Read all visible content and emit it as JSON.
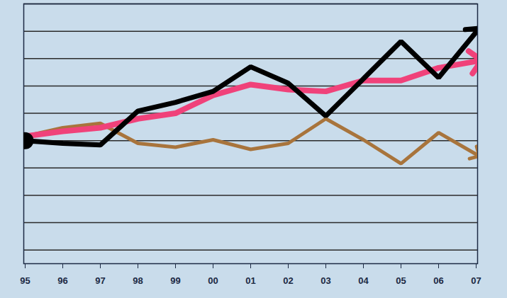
{
  "chart_data": {
    "type": "line",
    "categories": [
      "95",
      "96",
      "97",
      "98",
      "99",
      "00",
      "01",
      "02",
      "03",
      "04",
      "05",
      "06",
      "07"
    ],
    "series": [
      {
        "color": "#a8743c",
        "marker": "arrow",
        "values": [
          101.6,
          104.7,
          106.3,
          99,
          97.6,
          100.3,
          96.8,
          99,
          108,
          100.3,
          91.6,
          102.9,
          95
        ]
      },
      {
        "color": "#f0427a",
        "marker": "arrow",
        "values": [
          101.6,
          103.4,
          104.7,
          108,
          110,
          116.6,
          120.5,
          118.7,
          118,
          122,
          122,
          126.6,
          129
        ]
      },
      {
        "color": "#000000",
        "marker": "arrow",
        "values": [
          100,
          99,
          98.4,
          110.8,
          114,
          118,
          127,
          121,
          109,
          122.6,
          136.3,
          123,
          139.7
        ]
      }
    ],
    "ylim": [
      55,
      150
    ],
    "yticks": [
      60,
      70,
      80,
      90,
      100,
      110,
      120,
      130,
      140,
      150
    ],
    "grid": true,
    "tick_labels": "x"
  }
}
